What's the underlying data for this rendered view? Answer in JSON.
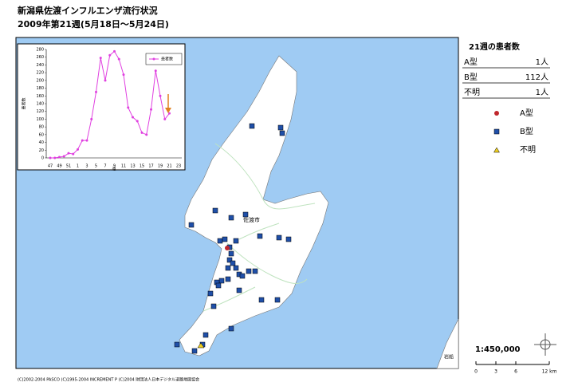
{
  "title": "新潟県佐渡インフルエンザ流行状況",
  "subtitle": "2009年第21週(5月18日～5月24日)",
  "chart_data": {
    "type": "line",
    "x_label": "週",
    "y_label": "患者数",
    "categories": [
      "47",
      null,
      "49",
      null,
      "51",
      null,
      "1",
      null,
      "3",
      null,
      "5",
      null,
      "7",
      null,
      "9",
      null,
      "11",
      null,
      "13",
      null,
      "15",
      null,
      "17",
      null,
      "19",
      null,
      "21",
      null,
      "23"
    ],
    "series": [
      {
        "name": "患者数",
        "color": "#e040e0",
        "values": [
          0,
          0,
          2,
          4,
          12,
          10,
          22,
          45,
          45,
          100,
          170,
          258,
          200,
          265,
          275,
          255,
          215,
          130,
          105,
          95,
          65,
          60,
          125,
          225,
          160,
          100,
          115,
          null,
          null
        ]
      }
    ],
    "ylim": [
      0,
      280
    ],
    "yticks": [
      0,
      20,
      40,
      60,
      80,
      100,
      120,
      140,
      160,
      180,
      200,
      220,
      240,
      260,
      280
    ]
  },
  "summary": {
    "title": "21週の患者数",
    "rows": [
      {
        "label": "A型",
        "value": "1人"
      },
      {
        "label": "B型",
        "value": "112人"
      },
      {
        "label": "不明",
        "value": "1人"
      }
    ]
  },
  "legend": [
    {
      "label": "A型",
      "symbol": "circle",
      "color": "#c0282d"
    },
    {
      "label": "B型",
      "symbol": "square",
      "color": "#1f4fa8"
    },
    {
      "label": "不明",
      "symbol": "triangle",
      "color": "#f0d020"
    }
  ],
  "map": {
    "labels": [
      "佐渡市",
      "岩船"
    ],
    "scale": "1:450,000",
    "scale_ticks": [
      "0",
      "3",
      "6",
      "12 km"
    ]
  },
  "credits": "(C)2002-2004 PASCO (C)1995-2004 INCREMENT P (C)2004 財団法人日本デジタル道路地図協会"
}
